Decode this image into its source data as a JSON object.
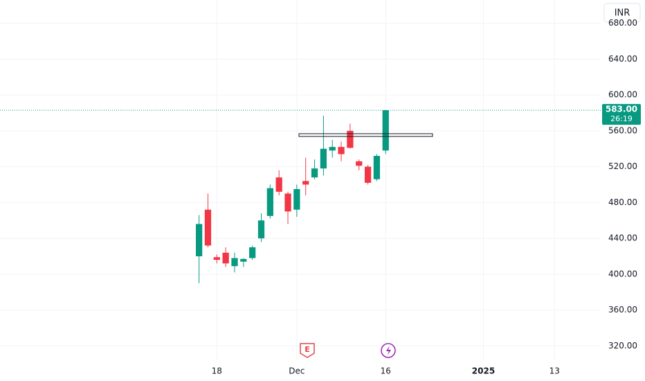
{
  "chart_data": {
    "type": "candlestick",
    "currency": "INR",
    "up_color": "#089981",
    "down_color": "#f23645",
    "grid": true,
    "ylim": [
      304,
      706
    ],
    "yticks": [
      {
        "value": 320,
        "label": "320.00"
      },
      {
        "value": 360,
        "label": "360.00"
      },
      {
        "value": 400,
        "label": "400.00"
      },
      {
        "value": 440,
        "label": "440.00"
      },
      {
        "value": 480,
        "label": "480.00"
      },
      {
        "value": 520,
        "label": "520.00"
      },
      {
        "value": 560,
        "label": "560.00"
      },
      {
        "value": 600,
        "label": "600.00"
      },
      {
        "value": 640,
        "label": "640.00"
      },
      {
        "value": 680,
        "label": "680.00"
      }
    ],
    "xlim": [
      -22.4,
      45.2
    ],
    "xticks": [
      {
        "value": 2,
        "label": "18"
      },
      {
        "value": 11,
        "label": "Dec"
      },
      {
        "value": 21,
        "label": "16"
      },
      {
        "value": 32,
        "label": "2025"
      },
      {
        "value": 40,
        "label": "13"
      }
    ],
    "candles": [
      {
        "open": 420,
        "high": 466,
        "low": 390,
        "close": 456
      },
      {
        "open": 472,
        "high": 490,
        "low": 430,
        "close": 432
      },
      {
        "open": 419,
        "high": 422,
        "low": 412,
        "close": 416
      },
      {
        "open": 424,
        "high": 430,
        "low": 408,
        "close": 412
      },
      {
        "open": 409,
        "high": 424,
        "low": 402,
        "close": 418
      },
      {
        "open": 414,
        "high": 418,
        "low": 408,
        "close": 417
      },
      {
        "open": 418,
        "high": 432,
        "low": 416,
        "close": 430
      },
      {
        "open": 440,
        "high": 468,
        "low": 436,
        "close": 460
      },
      {
        "open": 465,
        "high": 500,
        "low": 462,
        "close": 496
      },
      {
        "open": 508,
        "high": 516,
        "low": 488,
        "close": 492
      },
      {
        "open": 490,
        "high": 492,
        "low": 456,
        "close": 470
      },
      {
        "open": 472,
        "high": 500,
        "low": 464,
        "close": 495
      },
      {
        "open": 504,
        "high": 530,
        "low": 488,
        "close": 500
      },
      {
        "open": 508,
        "high": 528,
        "low": 506,
        "close": 518
      },
      {
        "open": 518,
        "high": 577,
        "low": 510,
        "close": 540
      },
      {
        "open": 538,
        "high": 550,
        "low": 530,
        "close": 542
      },
      {
        "open": 542,
        "high": 548,
        "low": 526,
        "close": 534
      },
      {
        "open": 560,
        "high": 568,
        "low": 540,
        "close": 541
      },
      {
        "open": 526,
        "high": 528,
        "low": 516,
        "close": 521
      },
      {
        "open": 520,
        "high": 522,
        "low": 500,
        "close": 502
      },
      {
        "open": 506,
        "high": 534,
        "low": 504,
        "close": 532
      },
      {
        "open": 538,
        "high": 583,
        "low": 534,
        "close": 583
      }
    ],
    "last_price_label": "583.00",
    "countdown": "26:19",
    "earnings_marker": "E"
  }
}
